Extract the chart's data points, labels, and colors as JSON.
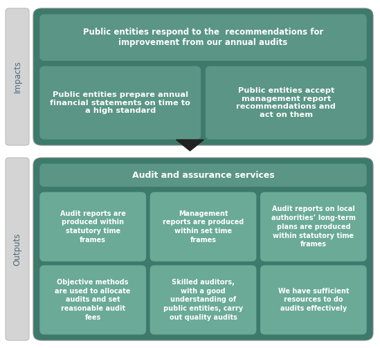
{
  "bg_color": "#ffffff",
  "dark_green": "#3d7a6b",
  "mid_green": "#5a9585",
  "light_green_box": "#6aaa97",
  "label_bg": "#d4d4d4",
  "label_border": "#bbbbbb",
  "label_text_color": "#4a6a7a",
  "impacts_label": "Impacts",
  "outputs_label": "Outputs",
  "impact_top_text": "Public entities respond to the  recommendations for\nimprovement from our annual audits",
  "impact_left_text": "Public entities prepare annual\nfinancial statements on time to\na high standard",
  "impact_right_text": "Public entities accept\nmanagement report\nrecommendations and\nact on them",
  "outputs_header": "Audit and assurance services",
  "output_boxes": [
    "Audit reports are\nproduced within\nstatutory time\nframes",
    "Management\nreports are produced\nwithin set time\nframes",
    "Audit reports on local\nauthorities’ long-term\nplans are produced\nwithin statutory time\nframes",
    "Objective methods\nare used to allocate\naudits and set\nreasonable audit\nfees",
    "Skilled auditors,\nwith a good\nunderstanding of\npublic entities, carry\nout quality audits",
    "We have sufficient\nresources to do\naudits effectively"
  ],
  "fig_w": 5.49,
  "fig_h": 5.03,
  "dpi": 100
}
